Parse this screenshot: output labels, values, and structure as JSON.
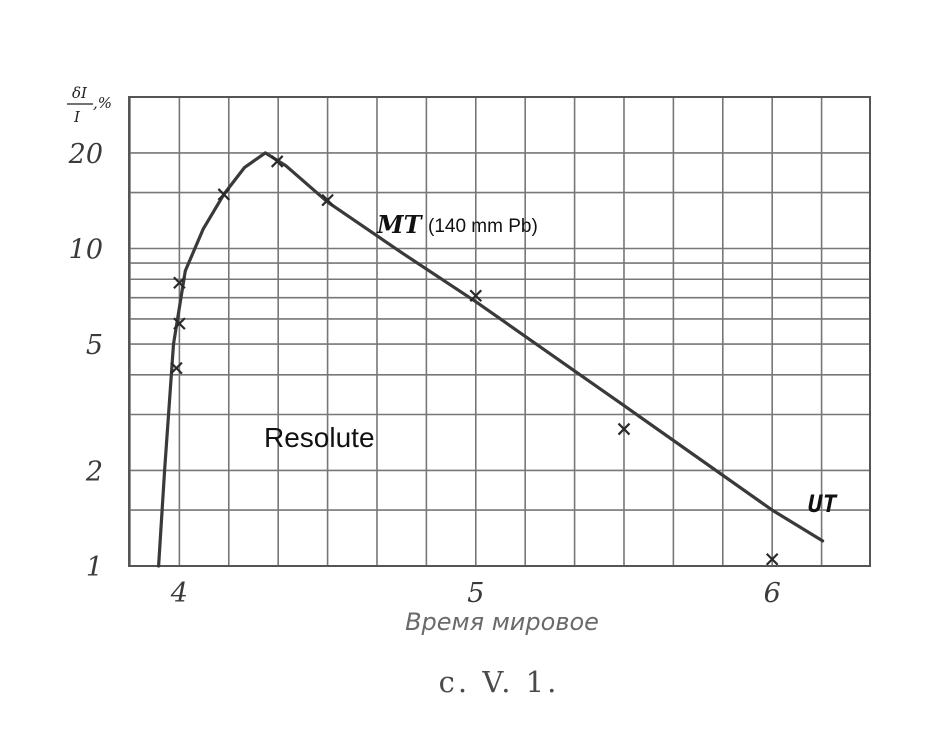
{
  "chart_data": {
    "type": "line",
    "title": "",
    "ylabel": {
      "numerator": "δI",
      "denominator": "I",
      "suffix": ",%"
    },
    "xlabel": "Время мировое",
    "y_scale": "log",
    "x_ticks": [
      "4",
      "5",
      "6"
    ],
    "x_tick_values": [
      4,
      5,
      6
    ],
    "y_ticks": [
      "1",
      "2",
      "5",
      "10",
      "20"
    ],
    "y_tick_values": [
      1,
      2,
      5,
      10,
      20
    ],
    "xlim": [
      3.83,
      6.33
    ],
    "ylim": [
      1,
      30
    ],
    "grid": true,
    "series": [
      {
        "name": "",
        "style": "curve",
        "x": [
          3.93,
          3.95,
          3.98,
          4.02,
          4.08,
          4.15,
          4.22,
          4.29,
          4.36,
          4.5,
          4.75,
          5.0,
          5.5,
          6.0,
          6.17
        ],
        "y": [
          1.0,
          2.0,
          5.0,
          8.5,
          11.5,
          14.8,
          18.0,
          20.0,
          18.2,
          14.0,
          9.7,
          6.8,
          3.2,
          1.5,
          1.2
        ]
      },
      {
        "name": "",
        "style": "markers",
        "x": [
          3.99,
          4.0,
          4.0,
          4.15,
          4.33,
          4.5,
          5.0,
          5.5,
          6.0
        ],
        "y": [
          4.2,
          5.8,
          7.8,
          14.8,
          18.8,
          14.2,
          7.1,
          2.7,
          1.05
        ]
      }
    ],
    "annotations": {
      "mt_label": "MT",
      "mt_detail": "(140 mm Pb)",
      "ut_label": "UT",
      "station": "Resolute"
    },
    "caption": "с. V. 1."
  }
}
